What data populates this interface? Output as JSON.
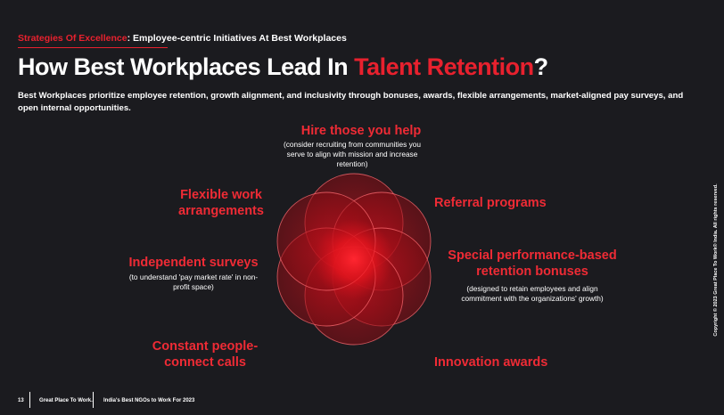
{
  "header": {
    "kicker_accent": "Strategies Of Excellence",
    "kicker_rest": ": Employee-centric Initiatives At Best Workplaces",
    "title_main": "How Best Workplaces Lead In ",
    "title_accent": "Talent Retention",
    "title_end": "?",
    "subtitle": "Best Workplaces prioritize employee retention, growth alignment, and inclusivity through bonuses, awards, flexible arrangements, market-aligned pay surveys, and open internal opportunities."
  },
  "initiatives": {
    "hire": {
      "label": "Hire those you help",
      "note": "(consider recruiting from communities you serve to align with mission and increase retention)"
    },
    "referral": {
      "label": "Referral programs"
    },
    "bonuses": {
      "label": "Special performance-based retention bonuses",
      "note": "(designed to retain employees and align commitment with the organizations' growth)"
    },
    "awards": {
      "label": "Innovation awards"
    },
    "calls": {
      "label": "Constant people-connect calls"
    },
    "surveys": {
      "label": "Independent surveys",
      "note": "(to understand 'pay market rate' in non-profit space)"
    },
    "flexible": {
      "label": "Flexible work arrangements"
    }
  },
  "colors": {
    "accent": "#e8212e",
    "background": "#1b1b1f"
  },
  "footer": {
    "page_number": "13",
    "brand": "Great Place To Work.",
    "report": "India's Best NGOs to Work For 2023",
    "copyright": "Copyright © 2023 Great Place To Work® India. All rights reserved."
  }
}
